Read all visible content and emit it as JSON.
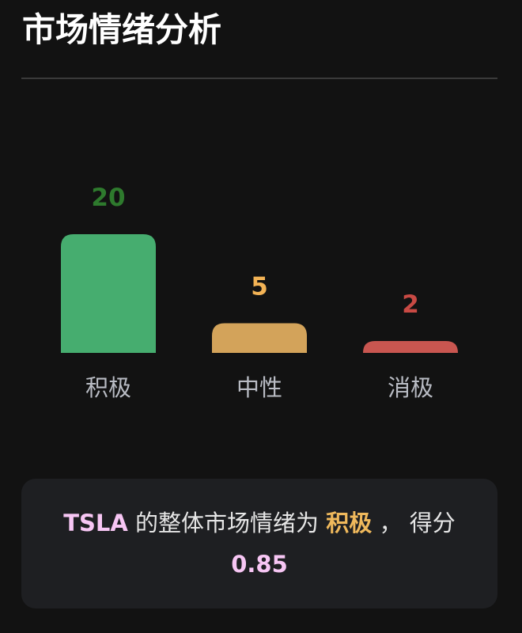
{
  "header": {
    "title": "市场情绪分析"
  },
  "chart_data": {
    "type": "bar",
    "categories": [
      "积极",
      "中性",
      "消极"
    ],
    "values": [
      20,
      5,
      2
    ],
    "colors": [
      "#46ad6f",
      "#d3a35a",
      "#c95650"
    ],
    "label_colors": [
      "#2e7a2d",
      "#f3b355",
      "#c94a44"
    ],
    "title": "",
    "xlabel": "",
    "ylabel": ""
  },
  "summary": {
    "ticker": "TSLA",
    "text_before": " 的整体市场情绪为 ",
    "sentiment": "积极",
    "text_after": " ， 得分",
    "score": "0.85"
  }
}
